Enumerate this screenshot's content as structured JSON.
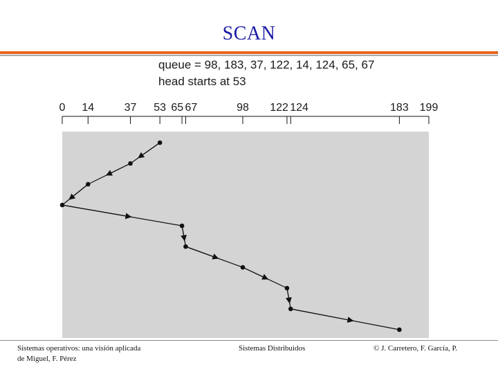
{
  "title": "SCAN",
  "queue_text": "queue = 98, 183, 37, 122, 14, 124, 65, 67",
  "head_text": "head starts at 53",
  "axis": {
    "min": 0,
    "max": 199,
    "tick_labels": [
      "0",
      "14",
      "37",
      "53",
      "65",
      "67",
      "98",
      "122",
      "124",
      "183",
      "199"
    ]
  },
  "chart_data": {
    "type": "line",
    "title": "",
    "xlabel": "",
    "ylabel": "",
    "xlim": [
      0,
      199
    ],
    "x_ticks": [
      0,
      14,
      37,
      53,
      65,
      67,
      98,
      122,
      124,
      183,
      199
    ],
    "head_start": 53,
    "queue": [
      98,
      183,
      37,
      122,
      14,
      124,
      65,
      67
    ],
    "service_order": [
      53,
      37,
      14,
      0,
      65,
      67,
      98,
      122,
      124,
      183
    ],
    "colors": {
      "panel": "#d4d4d4",
      "line": "#111111",
      "title": "#1a1aa6",
      "rule": "#e8641e"
    }
  },
  "footer": {
    "left_line1": "Sistemas operativos: una visión aplicada",
    "left_line2": "de Miguel, F. Pérez",
    "center": "Sistemas Distribuidos",
    "right": "© J. Carretero, F. García, P."
  }
}
